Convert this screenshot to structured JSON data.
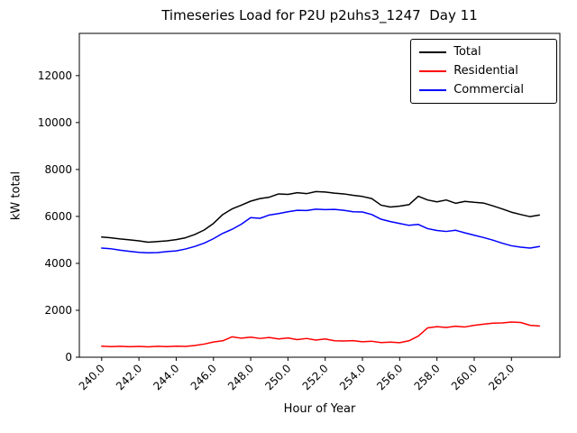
{
  "chart_data": {
    "type": "line",
    "title": "Timeseries Load for P2U p2uhs3_1247  Day 11",
    "xlabel": "Hour of Year",
    "ylabel": "kW total",
    "grid": false,
    "legend_position": "upper right",
    "xlim": [
      238.8,
      264.6
    ],
    "ylim": [
      0,
      13800
    ],
    "xticks": {
      "values": [
        240,
        242,
        244,
        246,
        248,
        250,
        252,
        254,
        256,
        258,
        260,
        262
      ],
      "labels": [
        "240.0",
        "242.0",
        "244.0",
        "246.0",
        "248.0",
        "250.0",
        "252.0",
        "254.0",
        "256.0",
        "258.0",
        "260.0",
        "262.0"
      ]
    },
    "yticks": {
      "values": [
        0,
        2000,
        4000,
        6000,
        8000,
        10000,
        12000
      ],
      "labels": [
        "0",
        "2000",
        "4000",
        "6000",
        "8000",
        "10000",
        "12000"
      ]
    },
    "x": [
      240.0,
      240.5,
      241.0,
      241.5,
      242.0,
      242.5,
      243.0,
      243.5,
      244.0,
      244.5,
      245.0,
      245.5,
      246.0,
      246.5,
      247.0,
      247.5,
      248.0,
      248.5,
      249.0,
      249.5,
      250.0,
      250.5,
      251.0,
      251.5,
      252.0,
      252.5,
      253.0,
      253.5,
      254.0,
      254.5,
      255.0,
      255.5,
      256.0,
      256.5,
      257.0,
      257.5,
      258.0,
      258.5,
      259.0,
      259.5,
      260.0,
      260.5,
      261.0,
      261.5,
      262.0,
      262.5,
      263.0,
      263.5
    ],
    "series": [
      {
        "name": "Total",
        "color": "#000000",
        "values": [
          5120,
          5090,
          5040,
          5000,
          4960,
          4900,
          4930,
          4960,
          5010,
          5090,
          5230,
          5420,
          5700,
          6080,
          6320,
          6480,
          6650,
          6760,
          6820,
          6960,
          6940,
          7010,
          6970,
          7060,
          7040,
          6990,
          6960,
          6900,
          6850,
          6760,
          6480,
          6400,
          6440,
          6500,
          6860,
          6700,
          6620,
          6700,
          6560,
          6640,
          6600,
          6570,
          6450,
          6320,
          6180,
          6080,
          5990,
          6060
        ]
      },
      {
        "name": "Residential",
        "color": "#ff0000",
        "values": [
          470,
          450,
          465,
          445,
          460,
          440,
          465,
          450,
          470,
          460,
          500,
          560,
          650,
          700,
          870,
          810,
          855,
          800,
          840,
          780,
          820,
          750,
          800,
          730,
          780,
          700,
          690,
          705,
          660,
          680,
          625,
          645,
          620,
          700,
          900,
          1250,
          1300,
          1270,
          1320,
          1290,
          1360,
          1410,
          1450,
          1460,
          1500,
          1480,
          1360,
          1330
        ]
      },
      {
        "name": "Commercial",
        "color": "#0000ff",
        "values": [
          4650,
          4620,
          4560,
          4510,
          4470,
          4450,
          4460,
          4500,
          4530,
          4610,
          4720,
          4860,
          5050,
          5280,
          5450,
          5670,
          5950,
          5920,
          6060,
          6120,
          6200,
          6260,
          6250,
          6310,
          6290,
          6300,
          6260,
          6200,
          6190,
          6080,
          5880,
          5780,
          5700,
          5620,
          5660,
          5480,
          5400,
          5360,
          5410,
          5300,
          5200,
          5100,
          4990,
          4860,
          4750,
          4690,
          4650,
          4720
        ]
      }
    ]
  }
}
